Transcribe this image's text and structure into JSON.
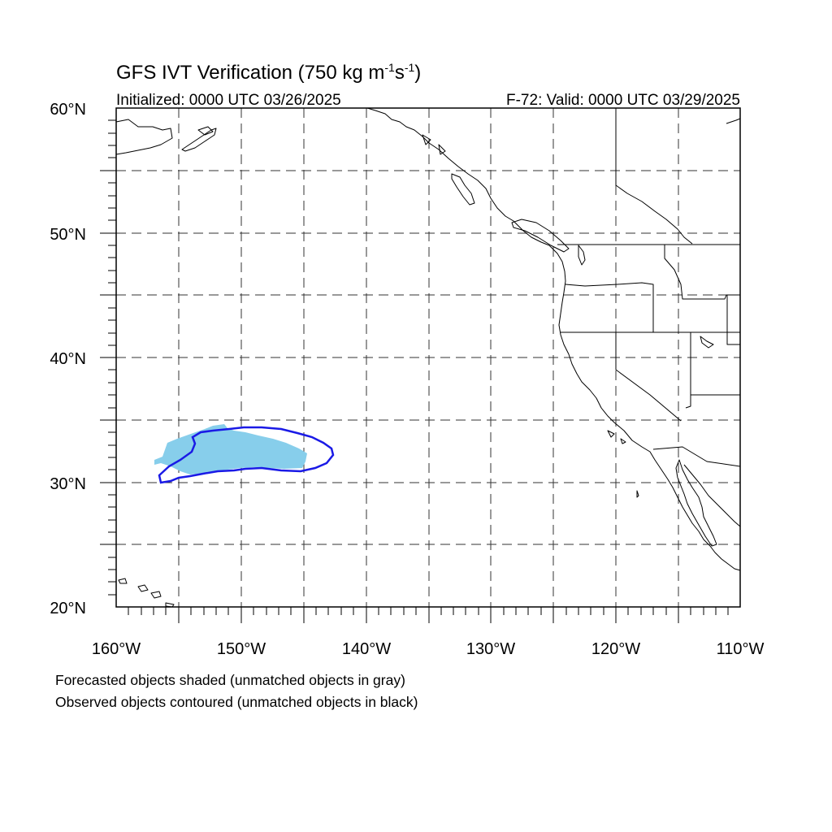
{
  "title": {
    "prefix": "GFS IVT Verification (750 kg m",
    "sup1": "-1",
    "mid": "s",
    "sup2": "-1",
    "suffix": ")"
  },
  "initialized": "Initialized: 0000 UTC 03/26/2025",
  "valid": "F-72: Valid: 0000 UTC 03/29/2025",
  "lat_labels": [
    "60°N",
    "50°N",
    "40°N",
    "30°N",
    "20°N"
  ],
  "lon_labels": [
    "160°W",
    "150°W",
    "140°W",
    "130°W",
    "120°W",
    "110°W"
  ],
  "map_extent": {
    "lon": [
      -160,
      -110
    ],
    "lat": [
      20,
      60
    ]
  },
  "legend": {
    "line1": "Forecasted objects shaded (unmatched objects in gray)",
    "line2": "Observed objects contoured (unmatched objects in black)"
  },
  "colors": {
    "forecast_fill": "#87CEEB",
    "observed_contour": "#1A1AE6",
    "coast": "#000000",
    "grid": "#333333"
  }
}
